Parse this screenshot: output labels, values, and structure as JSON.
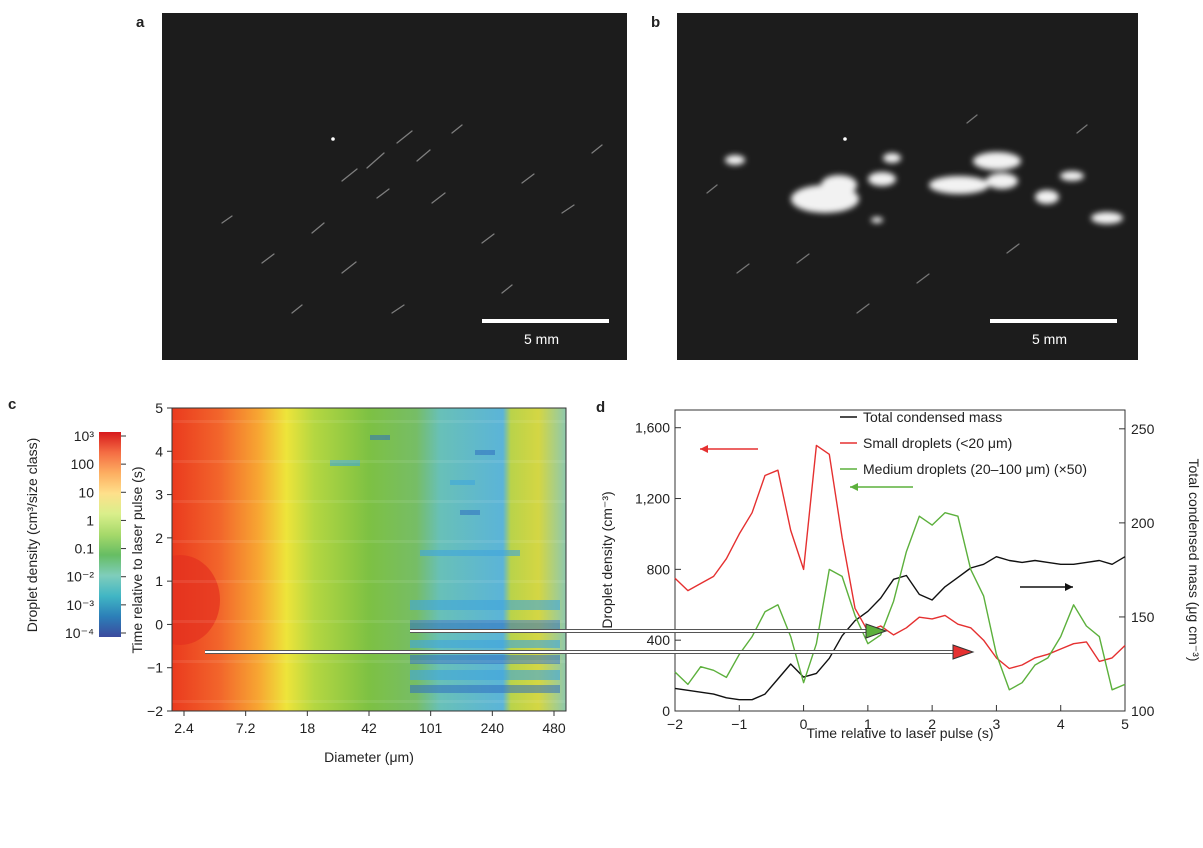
{
  "panels": {
    "a": {
      "label": "a",
      "scale_label": "5 mm"
    },
    "b": {
      "label": "b",
      "scale_label": "5 mm"
    },
    "c": {
      "label": "c"
    },
    "d": {
      "label": "d"
    }
  },
  "chart_data": [
    {
      "type": "heatmap",
      "panel": "c",
      "xlabel": "Diameter (μm)",
      "ylabel": "Time relative to laser pulse (s)",
      "x_scale": "log",
      "x_tick_labels": [
        "2.4",
        "7.2",
        "18",
        "42",
        "101",
        "240",
        "480"
      ],
      "y_tick_labels": [
        "5",
        "4",
        "3",
        "2",
        "1",
        "0",
        "−1",
        "−2"
      ],
      "ylim": [
        -2,
        5
      ],
      "colorbar": {
        "label": "Droplet density (cm³/size class)",
        "scale": "log",
        "tick_labels": [
          "10³",
          "100",
          "10",
          "1",
          "0.1",
          "10⁻²",
          "10⁻³",
          "10⁻⁴"
        ],
        "colors": [
          "#d7191c",
          "#f46d43",
          "#fdae61",
          "#fee08b",
          "#d9ef8b",
          "#a6d96a",
          "#66bd63",
          "#7fcdbb",
          "#41b6c4",
          "#2c7fb8",
          "#3b4a9e"
        ]
      }
    },
    {
      "type": "line",
      "panel": "d",
      "xlabel": "Time relative to laser pulse (s)",
      "ylabel": "Droplet density (cm⁻³)",
      "y2label": "Total condensed mass (μg cm⁻³)",
      "xlim": [
        -2,
        5
      ],
      "ylim": [
        0,
        1700
      ],
      "y2lim": [
        100,
        260
      ],
      "x_tick_labels": [
        "−2",
        "−1",
        "0",
        "1",
        "2",
        "3",
        "4",
        "5"
      ],
      "y_tick_labels": [
        "0",
        "400",
        "800",
        "1,200",
        "1,600"
      ],
      "y2_tick_labels": [
        "100",
        "150",
        "200",
        "250"
      ],
      "legend_position": "top-center",
      "x": [
        -2.0,
        -1.8,
        -1.6,
        -1.4,
        -1.2,
        -1.0,
        -0.8,
        -0.6,
        -0.4,
        -0.2,
        0.0,
        0.2,
        0.4,
        0.6,
        0.8,
        1.0,
        1.2,
        1.4,
        1.6,
        1.8,
        2.0,
        2.2,
        2.4,
        2.6,
        2.8,
        3.0,
        3.2,
        3.4,
        3.6,
        3.8,
        4.0,
        4.2,
        4.4,
        4.6,
        4.8,
        5.0
      ],
      "series": [
        {
          "name": "Total condensed mass",
          "axis": "right",
          "color": "#111111",
          "values": [
            112,
            111,
            110,
            109,
            107,
            106,
            106,
            109,
            117,
            125,
            118,
            120,
            128,
            140,
            148,
            153,
            160,
            170,
            172,
            162,
            159,
            166,
            171,
            176,
            178,
            182,
            180,
            179,
            180,
            179,
            178,
            178,
            179,
            180,
            178,
            182
          ]
        },
        {
          "name": "Small droplets (<20 μm)",
          "axis": "left",
          "color": "#e53030",
          "values": [
            750,
            680,
            720,
            760,
            860,
            1000,
            1120,
            1330,
            1360,
            1020,
            800,
            1500,
            1450,
            980,
            580,
            450,
            480,
            430,
            470,
            530,
            520,
            540,
            490,
            470,
            400,
            300,
            240,
            260,
            300,
            320,
            350,
            380,
            390,
            280,
            300,
            370
          ]
        },
        {
          "name": "Medium droplets (20–100 μm) (×50)",
          "axis": "left",
          "color": "#5cb03c",
          "values": [
            220,
            150,
            250,
            230,
            190,
            320,
            420,
            560,
            600,
            420,
            160,
            380,
            800,
            760,
            540,
            380,
            430,
            620,
            900,
            1100,
            1050,
            1120,
            1100,
            800,
            650,
            320,
            120,
            160,
            260,
            300,
            420,
            600,
            480,
            420,
            120,
            150
          ]
        }
      ],
      "arrows": [
        {
          "series": "Small droplets (<20 μm)",
          "direction": "left",
          "color": "#e53030"
        },
        {
          "series": "Medium droplets (20–100 μm) (×50)",
          "direction": "left",
          "color": "#5cb03c"
        },
        {
          "series": "Total condensed mass",
          "direction": "right",
          "color": "#111111"
        }
      ]
    }
  ]
}
